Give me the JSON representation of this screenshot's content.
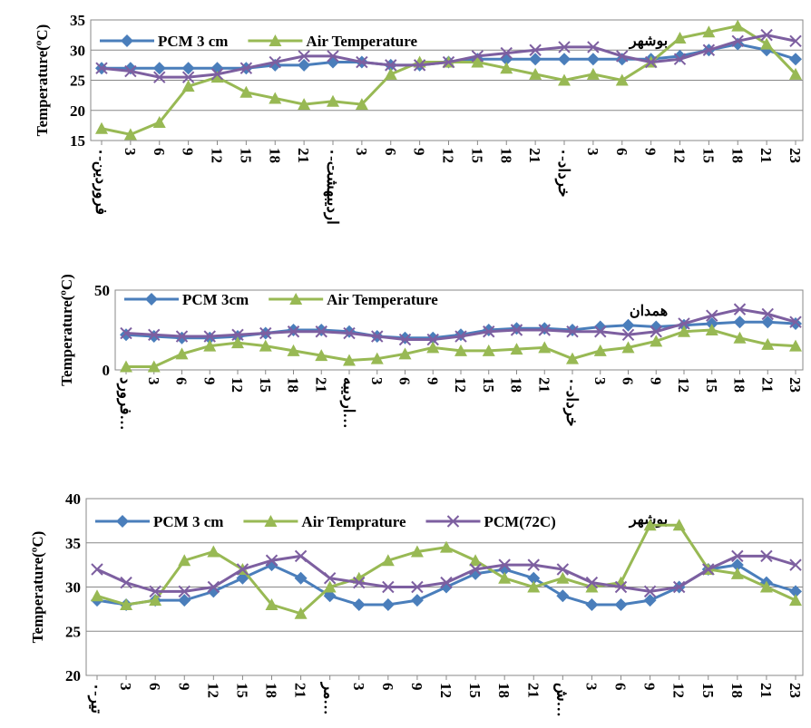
{
  "chart_data": [
    {
      "type": "line",
      "y_label": "Temperature(ºC)",
      "annotation": "بوشهر",
      "legend": "top-left",
      "categories": [
        "فروردین-۰",
        "3",
        "6",
        "9",
        "12",
        "15",
        "18",
        "21",
        "اردیبهشت-۰",
        "3",
        "6",
        "9",
        "12",
        "15",
        "18",
        "21",
        "خرداد-۰",
        "3",
        "6",
        "9",
        "12",
        "15",
        "18",
        "21",
        "23"
      ],
      "ylim": [
        15,
        35
      ],
      "yticks": [
        15,
        20,
        25,
        30,
        35
      ],
      "series": [
        {
          "name": "PCM 3 cm",
          "color": "#4a7ebb",
          "marker": "diamond",
          "values": [
            27,
            27,
            27,
            27,
            27,
            27,
            27.5,
            27.5,
            28,
            28,
            27.5,
            27.5,
            28,
            28.5,
            28.5,
            28.5,
            28.5,
            28.5,
            28.5,
            28.5,
            29,
            30,
            31,
            30,
            28.5
          ]
        },
        {
          "name": "Air Temperature",
          "color": "#98b954",
          "marker": "triangle",
          "values": [
            17,
            16,
            18,
            24,
            25.5,
            23,
            22,
            21,
            21.5,
            21,
            26,
            28,
            28,
            28,
            27,
            26,
            25,
            26,
            25,
            28,
            32,
            33,
            34,
            31,
            26
          ]
        },
        {
          "color": "#7d5fa0",
          "marker": "x",
          "values": [
            27,
            26.5,
            25.5,
            25.5,
            26,
            27,
            28,
            29,
            29,
            28,
            27.5,
            27.5,
            28,
            29,
            29.5,
            30,
            30.5,
            30.5,
            29,
            28,
            28.5,
            30,
            31.5,
            32.5,
            31.5
          ]
        }
      ]
    },
    {
      "type": "line",
      "y_label": "Temperature(ºC)",
      "annotation": "همدان",
      "legend": "top-left",
      "categories": [
        "فرورد…",
        "3",
        "6",
        "9",
        "12",
        "15",
        "18",
        "21",
        "اردیبه…",
        "3",
        "6",
        "9",
        "12",
        "15",
        "18",
        "21",
        "خرداد-۰",
        "3",
        "6",
        "9",
        "12",
        "15",
        "18",
        "21",
        "23"
      ],
      "ylim": [
        0,
        50
      ],
      "yticks": [
        0,
        50
      ],
      "series": [
        {
          "name": "PCM 3cm",
          "color": "#4a7ebb",
          "marker": "diamond",
          "values": [
            22,
            21,
            20,
            20,
            21,
            23,
            25,
            25,
            24,
            21,
            20,
            20,
            22,
            25,
            26,
            26,
            25,
            27,
            28,
            27,
            28,
            29,
            30,
            30,
            29
          ]
        },
        {
          "name": "Air Temperature",
          "color": "#98b954",
          "marker": "triangle",
          "values": [
            2,
            2,
            10,
            15,
            17,
            15,
            12,
            9,
            6,
            7,
            10,
            14,
            12,
            12,
            13,
            14,
            7,
            12,
            14,
            18,
            24,
            25,
            20,
            16,
            15
          ]
        },
        {
          "color": "#7d5fa0",
          "marker": "x",
          "values": [
            23,
            22,
            21,
            21,
            22,
            23,
            24,
            24,
            23,
            21,
            19,
            19,
            21,
            24,
            25,
            25,
            24,
            24,
            22,
            24,
            29,
            34,
            38,
            35,
            30
          ]
        }
      ]
    },
    {
      "type": "line",
      "y_label": "Temperature(ºC)",
      "annotation": "بوشهر",
      "legend": "top-left",
      "categories": [
        "تیر-۰",
        "3",
        "6",
        "9",
        "12",
        "15",
        "18",
        "21",
        "مر…",
        "3",
        "6",
        "9",
        "12",
        "15",
        "18",
        "21",
        "ش…",
        "3",
        "6",
        "9",
        "12",
        "15",
        "18",
        "21",
        "23"
      ],
      "ylim": [
        20,
        40
      ],
      "yticks": [
        20,
        25,
        30,
        35,
        40
      ],
      "series": [
        {
          "name": "PCM 3 cm",
          "color": "#4a7ebb",
          "marker": "diamond",
          "values": [
            28.5,
            28,
            28.5,
            28.5,
            29.5,
            31,
            32.5,
            31,
            29,
            28,
            28,
            28.5,
            30,
            31.5,
            32,
            31,
            29,
            28,
            28,
            28.5,
            30,
            32,
            32.5,
            30.5,
            29.5
          ]
        },
        {
          "name": "Air Temprature",
          "color": "#98b954",
          "marker": "triangle",
          "values": [
            29,
            28,
            28.5,
            33,
            34,
            32,
            28,
            27,
            30,
            31,
            33,
            34,
            34.5,
            33,
            31,
            30,
            31,
            30,
            30.5,
            37,
            37,
            32,
            31.5,
            30,
            28.5
          ]
        },
        {
          "name": "PCM(72C)",
          "color": "#7d5fa0",
          "marker": "x",
          "values": [
            32,
            30.5,
            29.5,
            29.5,
            30,
            32,
            33,
            33.5,
            31,
            30.5,
            30,
            30,
            30.5,
            32,
            32.5,
            32.5,
            32,
            30.5,
            30,
            29.5,
            30,
            32,
            33.5,
            33.5,
            32.5
          ]
        }
      ]
    }
  ]
}
